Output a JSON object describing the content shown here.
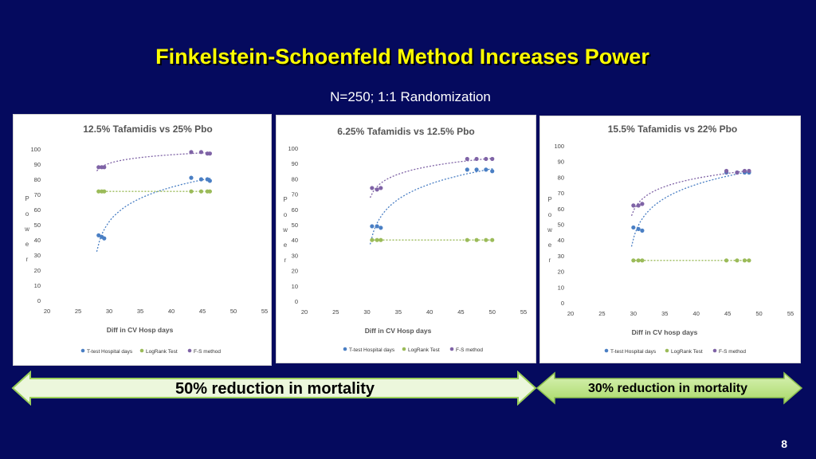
{
  "slide": {
    "title": "Finkelstein-Schoenfeld Method Increases Power",
    "subtitle": "N=250; 1:1 Randomization",
    "page_number": "8",
    "banner_left": "50% reduction in mortality",
    "banner_right": "30% reduction in mortality",
    "colors": {
      "background": "#050a5e",
      "title": "#ffff00",
      "t_test": "#4a7fc4",
      "logrank": "#9bbb59",
      "fs_method": "#7f63a6",
      "banner_fill": "#ecf7dc"
    }
  },
  "chart_data": [
    {
      "type": "scatter",
      "title": "12.5% Tafamidis vs 25% Pbo",
      "xlabel": "Diff in CV Hosp days",
      "ylabel": "Power",
      "xlim": [
        20,
        55
      ],
      "ylim": [
        0,
        100
      ],
      "x_ticks": [
        "20",
        "25",
        "30",
        "35",
        "40",
        "45",
        "50",
        "55"
      ],
      "y_ticks": [
        "0",
        "10",
        "20",
        "30",
        "40",
        "50",
        "60",
        "70",
        "80",
        "90",
        "100"
      ],
      "grid": false,
      "legend": "bottom",
      "series": [
        {
          "name": "T-test Hospital days",
          "x": [
            28.3,
            28.8,
            29.2,
            43.2,
            44.8,
            45.8,
            46.2
          ],
          "y": [
            43,
            42,
            41,
            81,
            80,
            80,
            79
          ]
        },
        {
          "name": "LogRank Test",
          "x": [
            28.3,
            28.8,
            29.2,
            43.2,
            44.8,
            45.8,
            46.2
          ],
          "y": [
            72,
            72,
            72,
            72,
            72,
            72,
            72
          ]
        },
        {
          "name": "F-S method",
          "x": [
            28.3,
            28.8,
            29.2,
            43.2,
            44.8,
            45.8,
            46.2
          ],
          "y": [
            88,
            88,
            88,
            98,
            98,
            97,
            97
          ]
        }
      ]
    },
    {
      "type": "scatter",
      "title": "6.25% Tafamidis vs 12.5% Pbo",
      "xlabel": "Diff in CV Hosp days",
      "ylabel": "Power",
      "xlim": [
        20,
        55
      ],
      "ylim": [
        0,
        100
      ],
      "x_ticks": [
        "20",
        "25",
        "30",
        "35",
        "40",
        "45",
        "50",
        "55"
      ],
      "y_ticks": [
        "0",
        "10",
        "20",
        "30",
        "40",
        "50",
        "60",
        "70",
        "80",
        "90",
        "100"
      ],
      "grid": false,
      "legend": "bottom",
      "series": [
        {
          "name": "T-test Hospital days",
          "x": [
            30.8,
            31.6,
            32.2,
            46.0,
            47.5,
            49.0,
            50.0
          ],
          "y": [
            49,
            49,
            48,
            86,
            86,
            86,
            85
          ]
        },
        {
          "name": "LogRank Test",
          "x": [
            30.8,
            31.6,
            32.2,
            46.0,
            47.5,
            49.0,
            50.0
          ],
          "y": [
            40,
            40,
            40,
            40,
            40,
            40,
            40
          ]
        },
        {
          "name": "F-S method",
          "x": [
            30.8,
            31.6,
            32.2,
            46.0,
            47.5,
            49.0,
            50.0
          ],
          "y": [
            74,
            73,
            74,
            93,
            93,
            93,
            93
          ]
        }
      ]
    },
    {
      "type": "scatter",
      "title": "15.5% Tafamidis vs 22% Pbo",
      "xlabel": "Diff in CV hosp days",
      "ylabel": "Power",
      "xlim": [
        20,
        55
      ],
      "ylim": [
        0,
        100
      ],
      "x_ticks": [
        "20",
        "25",
        "30",
        "35",
        "40",
        "45",
        "50",
        "55"
      ],
      "y_ticks": [
        "0",
        "10",
        "20",
        "30",
        "40",
        "50",
        "60",
        "70",
        "80",
        "90",
        "100"
      ],
      "grid": false,
      "legend": "bottom",
      "series": [
        {
          "name": "T-test Hospital days",
          "x": [
            30.0,
            30.8,
            31.4,
            44.8,
            46.5,
            47.7,
            48.4
          ],
          "y": [
            48,
            47,
            46,
            83,
            83,
            83,
            83
          ]
        },
        {
          "name": "LogRank Test",
          "x": [
            30.0,
            30.8,
            31.4,
            44.8,
            46.5,
            47.7,
            48.4
          ],
          "y": [
            27,
            27,
            27,
            27,
            27,
            27,
            27
          ]
        },
        {
          "name": "F-S method",
          "x": [
            30.0,
            30.8,
            31.4,
            44.8,
            46.5,
            47.7,
            48.4
          ],
          "y": [
            62,
            62,
            63,
            84,
            83,
            84,
            84
          ]
        }
      ]
    }
  ]
}
